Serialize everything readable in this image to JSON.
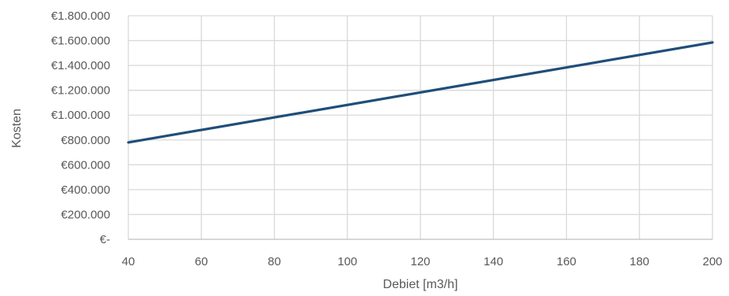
{
  "chart_data": {
    "type": "line",
    "title": "",
    "xlabel": "Debiet [m3/h]",
    "ylabel": "Kosten",
    "xlim": [
      40,
      200
    ],
    "ylim": [
      0,
      1800000
    ],
    "x_ticks": [
      40,
      60,
      80,
      100,
      120,
      140,
      160,
      180,
      200
    ],
    "x_tick_labels": [
      "40",
      "60",
      "80",
      "100",
      "120",
      "140",
      "160",
      "180",
      "200"
    ],
    "y_ticks": [
      0,
      200000,
      400000,
      600000,
      800000,
      1000000,
      1200000,
      1400000,
      1600000,
      1800000
    ],
    "y_tick_labels": [
      "€-",
      "€200.000",
      "€400.000",
      "€600.000",
      "€800.000",
      "€1.000.000",
      "€1.200.000",
      "€1.400.000",
      "€1.600.000",
      "€1.800.000"
    ],
    "grid": true,
    "legend": "none",
    "series": [
      {
        "color": "#1f4e79",
        "x": [
          40,
          200
        ],
        "y": [
          780000,
          1585000
        ]
      }
    ]
  }
}
